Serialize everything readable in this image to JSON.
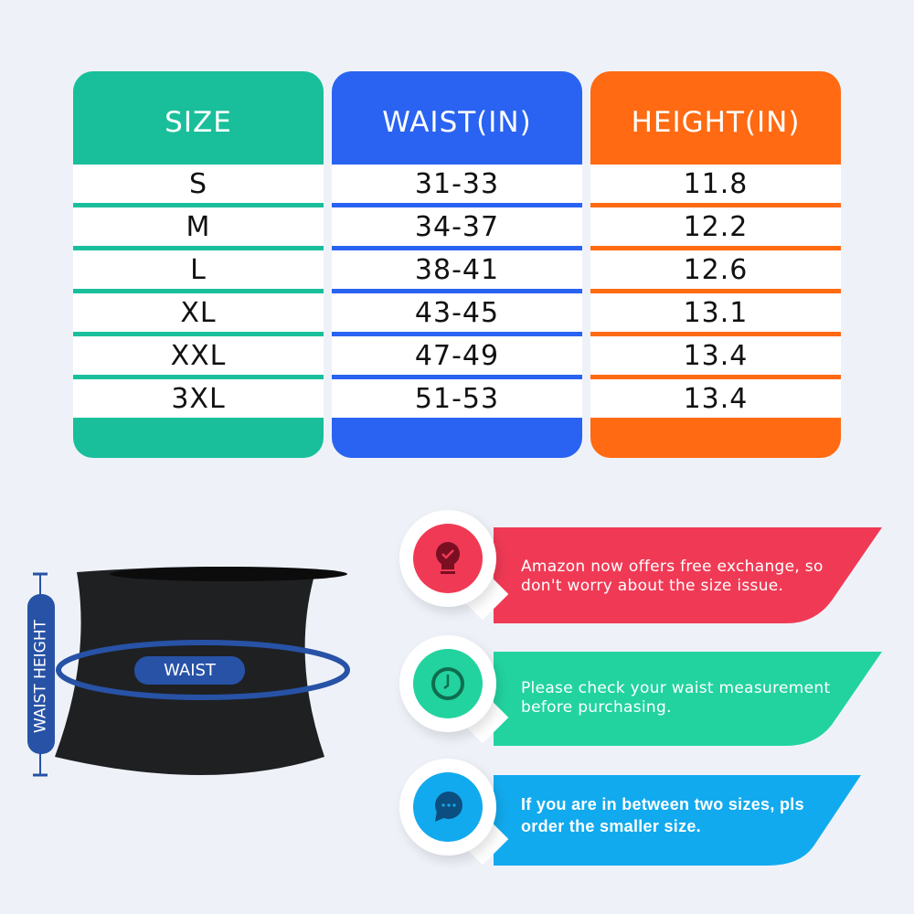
{
  "table": {
    "columns": [
      {
        "header": "SIZE",
        "color": "#19bf9b",
        "values": [
          "S",
          "M",
          "L",
          "XL",
          "XXL",
          "3XL"
        ]
      },
      {
        "header": "WAIST(IN)",
        "color": "#2a63f1",
        "values": [
          "31-33",
          "34-37",
          "38-41",
          "43-45",
          "47-49",
          "51-53"
        ]
      },
      {
        "header": "HEIGHT(IN)",
        "color": "#ff6a12",
        "values": [
          "11.8",
          "12.2",
          "12.6",
          "13.1",
          "13.4",
          "13.4"
        ]
      }
    ]
  },
  "diagram": {
    "waist_label": "WAIST",
    "height_label": "WAIST HEIGHT",
    "accent": "#2752a6"
  },
  "callouts": [
    {
      "text": "Amazon now offers free exchange, so don't worry about the size issue.",
      "color": "#f03a55",
      "icon": "lightbulb-check-icon"
    },
    {
      "text": "Please check your waist measurement before purchasing.",
      "color": "#22d3a0",
      "icon": "clock-icon"
    },
    {
      "text": "If you are in between two sizes, pls order the smaller size.",
      "color": "#12aaee",
      "icon": "chat-bubble-icon"
    }
  ]
}
